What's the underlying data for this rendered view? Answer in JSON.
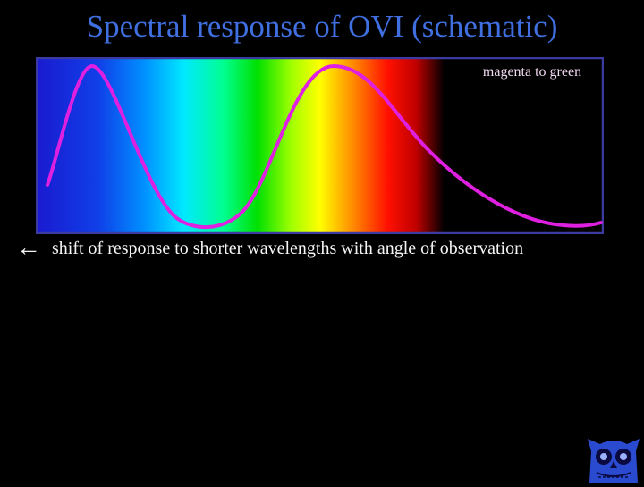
{
  "title": "Spectral response of OVI (schematic)",
  "diagram": {
    "corner_label": "magenta to green",
    "curve_color": "#e020e0",
    "frame_color": "#3a3aa0",
    "spectrum_colors": [
      "#1a1ad0",
      "#0066ff",
      "#00ccff",
      "#00ff66",
      "#ffff00",
      "#ff8800",
      "#ff0000",
      "#000000"
    ]
  },
  "caption": {
    "arrow": "←",
    "text": "shift of response to shorter wavelengths with angle of observation"
  },
  "logo": {
    "icon": "owl-logo-icon",
    "color": "#2a4ad0"
  }
}
